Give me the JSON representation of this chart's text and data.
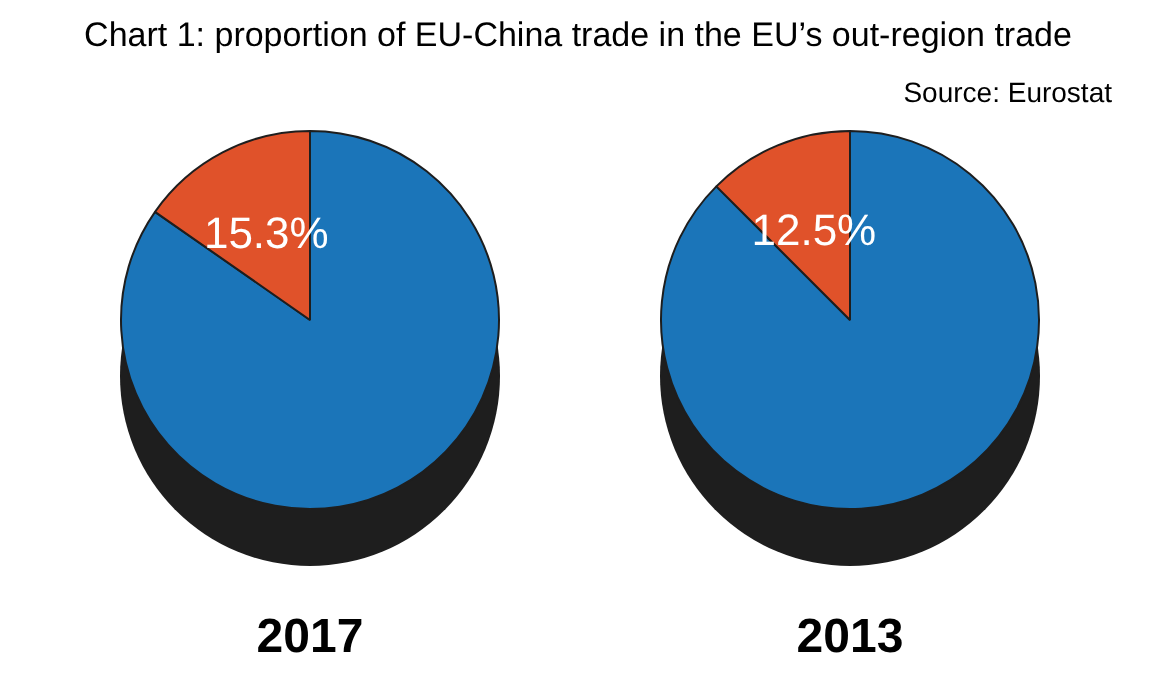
{
  "chart_data": [
    {
      "type": "pie",
      "title": "Chart 1: proportion of EU-China trade in the EU’s out-region trade",
      "annotations": [
        "Source: Eurostat"
      ],
      "xlabel": "2017",
      "categories": [
        null,
        null
      ],
      "values": [
        84.7,
        15.3
      ],
      "colors": [
        "#1b75b9",
        "#e0522a"
      ],
      "value_labels": [
        null,
        "15.3%"
      ],
      "legend": false
    },
    {
      "type": "pie",
      "xlabel": "2013",
      "categories": [
        null,
        null
      ],
      "values": [
        87.5,
        12.5
      ],
      "colors": [
        "#1b75b9",
        "#e0522a"
      ],
      "value_labels": [
        null,
        "12.5%"
      ],
      "legend": false
    }
  ]
}
